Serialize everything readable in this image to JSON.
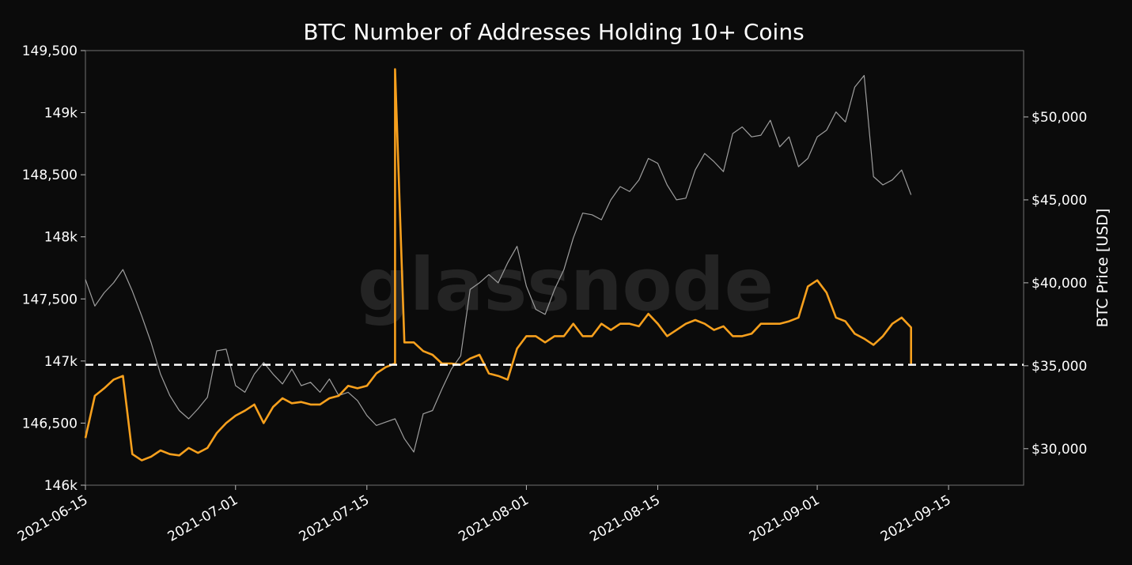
{
  "chart_data": {
    "type": "line",
    "title": "BTC Number of Addresses Holding 10+ Coins",
    "xlabel": "",
    "ylabel_left": "",
    "ylabel_right": "BTC Price [USD]",
    "watermark": "glassnode",
    "x_ticks": [
      "2021-06-15",
      "2021-07-01",
      "2021-07-15",
      "2021-08-01",
      "2021-08-15",
      "2021-09-01",
      "2021-09-15"
    ],
    "xlim": [
      "2021-06-15",
      "2021-09-23"
    ],
    "y_left_ticks": [
      {
        "value": 146000,
        "label": "146k"
      },
      {
        "value": 146500,
        "label": "146,500"
      },
      {
        "value": 147000,
        "label": "147k"
      },
      {
        "value": 147500,
        "label": "147,500"
      },
      {
        "value": 148000,
        "label": "148k"
      },
      {
        "value": 148500,
        "label": "148,500"
      },
      {
        "value": 149000,
        "label": "149k"
      },
      {
        "value": 149500,
        "label": "149,500"
      }
    ],
    "ylim_left": [
      146000,
      149500
    ],
    "y_right_ticks": [
      {
        "value": 30000,
        "label": "$30,000"
      },
      {
        "value": 35000,
        "label": "$35,000"
      },
      {
        "value": 40000,
        "label": "$40,000"
      },
      {
        "value": 45000,
        "label": "$45,000"
      },
      {
        "value": 50000,
        "label": "$50,000"
      }
    ],
    "ylim_right": [
      27800,
      54000
    ],
    "reference_line": {
      "value": 146970,
      "axis": "left",
      "style": "dashed",
      "color": "#ffffff"
    },
    "grid": false,
    "series": [
      {
        "axis": "left",
        "color": "#f7a01d",
        "x": [
          "2021-06-15",
          "2021-06-16",
          "2021-06-17",
          "2021-06-18",
          "2021-06-19",
          "2021-06-20",
          "2021-06-21",
          "2021-06-22",
          "2021-06-23",
          "2021-06-24",
          "2021-06-25",
          "2021-06-26",
          "2021-06-27",
          "2021-06-28",
          "2021-06-29",
          "2021-06-30",
          "2021-07-01",
          "2021-07-02",
          "2021-07-03",
          "2021-07-04",
          "2021-07-05",
          "2021-07-06",
          "2021-07-07",
          "2021-07-08",
          "2021-07-09",
          "2021-07-10",
          "2021-07-11",
          "2021-07-12",
          "2021-07-13",
          "2021-07-14",
          "2021-07-15",
          "2021-07-16",
          "2021-07-17",
          "2021-07-18",
          "2021-07-18",
          "2021-07-19",
          "2021-07-20",
          "2021-07-21",
          "2021-07-22",
          "2021-07-23",
          "2021-07-24",
          "2021-07-25",
          "2021-07-26",
          "2021-07-27",
          "2021-07-28",
          "2021-07-29",
          "2021-07-30",
          "2021-07-31",
          "2021-08-01",
          "2021-08-02",
          "2021-08-03",
          "2021-08-04",
          "2021-08-05",
          "2021-08-06",
          "2021-08-07",
          "2021-08-08",
          "2021-08-09",
          "2021-08-10",
          "2021-08-11",
          "2021-08-12",
          "2021-08-13",
          "2021-08-14",
          "2021-08-15",
          "2021-08-16",
          "2021-08-17",
          "2021-08-18",
          "2021-08-19",
          "2021-08-20",
          "2021-08-21",
          "2021-08-22",
          "2021-08-23",
          "2021-08-24",
          "2021-08-25",
          "2021-08-26",
          "2021-08-27",
          "2021-08-28",
          "2021-08-29",
          "2021-08-30",
          "2021-08-31",
          "2021-09-01",
          "2021-09-02",
          "2021-09-03",
          "2021-09-04",
          "2021-09-05",
          "2021-09-06",
          "2021-09-07",
          "2021-09-08",
          "2021-09-09",
          "2021-09-10",
          "2021-09-11",
          "2021-09-11"
        ],
        "values": [
          146380,
          146720,
          146780,
          146850,
          146880,
          146250,
          146200,
          146230,
          146280,
          146250,
          146240,
          146300,
          146260,
          146300,
          146420,
          146500,
          146560,
          146600,
          146650,
          146500,
          146630,
          146700,
          146660,
          146670,
          146650,
          146650,
          146700,
          146720,
          146800,
          146780,
          146800,
          146900,
          146950,
          146980,
          149350,
          147150,
          147150,
          147080,
          147050,
          146980,
          146980,
          146970,
          147020,
          147050,
          146900,
          146880,
          146850,
          147100,
          147200,
          147200,
          147150,
          147200,
          147200,
          147300,
          147200,
          147200,
          147300,
          147250,
          147300,
          147300,
          147280,
          147380,
          147300,
          147200,
          147250,
          147300,
          147330,
          147300,
          147250,
          147280,
          147200,
          147200,
          147220,
          147300,
          147300,
          147300,
          147320,
          147350,
          147600,
          147650,
          147550,
          147350,
          147320,
          147220,
          147180,
          147130,
          147200,
          147300,
          147350,
          147270,
          146970
        ]
      },
      {
        "axis": "right",
        "color": "#9e9e9e",
        "x": [
          "2021-06-15",
          "2021-06-16",
          "2021-06-17",
          "2021-06-18",
          "2021-06-19",
          "2021-06-20",
          "2021-06-21",
          "2021-06-22",
          "2021-06-23",
          "2021-06-24",
          "2021-06-25",
          "2021-06-26",
          "2021-06-27",
          "2021-06-28",
          "2021-06-29",
          "2021-06-30",
          "2021-07-01",
          "2021-07-02",
          "2021-07-03",
          "2021-07-04",
          "2021-07-05",
          "2021-07-06",
          "2021-07-07",
          "2021-07-08",
          "2021-07-09",
          "2021-07-10",
          "2021-07-11",
          "2021-07-12",
          "2021-07-13",
          "2021-07-14",
          "2021-07-15",
          "2021-07-16",
          "2021-07-17",
          "2021-07-18",
          "2021-07-19",
          "2021-07-20",
          "2021-07-21",
          "2021-07-22",
          "2021-07-23",
          "2021-07-24",
          "2021-07-25",
          "2021-07-26",
          "2021-07-27",
          "2021-07-28",
          "2021-07-29",
          "2021-07-30",
          "2021-07-31",
          "2021-08-01",
          "2021-08-02",
          "2021-08-03",
          "2021-08-04",
          "2021-08-05",
          "2021-08-06",
          "2021-08-07",
          "2021-08-08",
          "2021-08-09",
          "2021-08-10",
          "2021-08-11",
          "2021-08-12",
          "2021-08-13",
          "2021-08-14",
          "2021-08-15",
          "2021-08-16",
          "2021-08-17",
          "2021-08-18",
          "2021-08-19",
          "2021-08-20",
          "2021-08-21",
          "2021-08-22",
          "2021-08-23",
          "2021-08-24",
          "2021-08-25",
          "2021-08-26",
          "2021-08-27",
          "2021-08-28",
          "2021-08-29",
          "2021-08-30",
          "2021-08-31",
          "2021-09-01",
          "2021-09-02",
          "2021-09-03",
          "2021-09-04",
          "2021-09-05",
          "2021-09-06",
          "2021-09-07",
          "2021-09-08",
          "2021-09-09",
          "2021-09-10",
          "2021-09-11"
        ],
        "values": [
          40200,
          38600,
          39400,
          40000,
          40800,
          39500,
          38000,
          36400,
          34500,
          33200,
          32300,
          31800,
          32400,
          33100,
          35900,
          36000,
          33800,
          33400,
          34500,
          35200,
          34500,
          33900,
          34800,
          33800,
          34000,
          33400,
          34200,
          33200,
          33400,
          32900,
          32000,
          31400,
          31600,
          31800,
          30600,
          29800,
          32100,
          32300,
          33600,
          34800,
          35600,
          39600,
          40000,
          40500,
          40000,
          41200,
          42200,
          39800,
          38400,
          38100,
          39600,
          40800,
          42700,
          44200,
          44100,
          43800,
          45000,
          45800,
          45500,
          46200,
          47500,
          47200,
          45900,
          45000,
          45100,
          46800,
          47800,
          47300,
          46700,
          49000,
          49400,
          48800,
          48900,
          49800,
          48200,
          48800,
          47000,
          47500,
          48800,
          49200,
          50300,
          49700,
          51800,
          52500,
          46400,
          45900,
          46200,
          46800,
          45300
        ]
      }
    ]
  }
}
